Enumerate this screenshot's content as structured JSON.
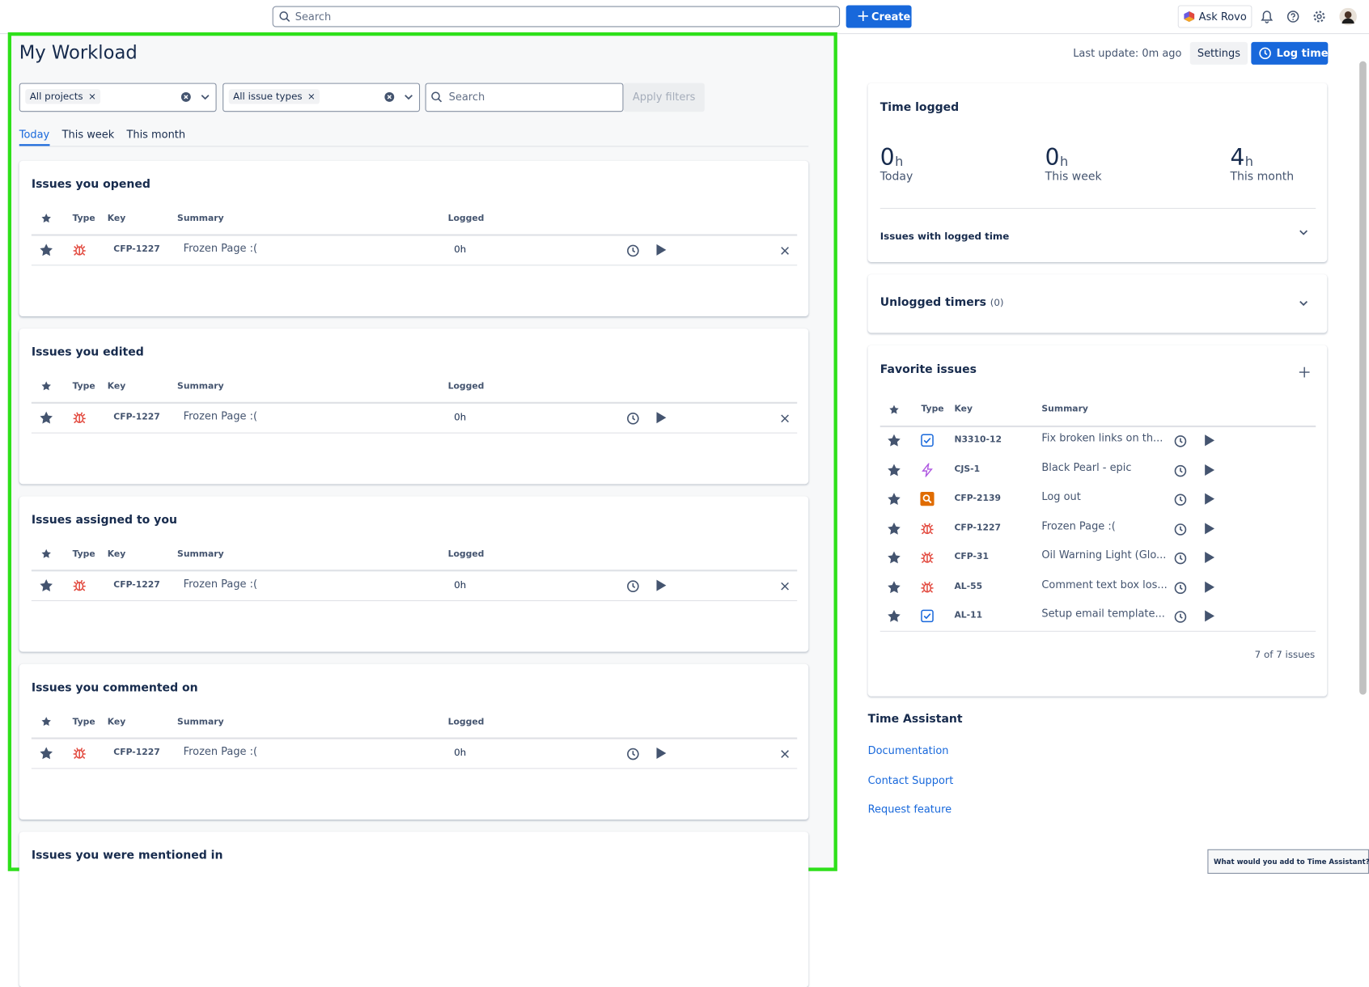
{
  "topbar": {
    "search_placeholder": "Search",
    "create": "Create",
    "ask_rovo": "Ask Rovo"
  },
  "workload": {
    "title": "My Workload",
    "filters": {
      "projects": "All projects",
      "issue_types": "All issue types",
      "search_placeholder": "Search",
      "apply": "Apply filters"
    },
    "tabs": [
      "Today",
      "This week",
      "This month"
    ],
    "columns": [
      "Type",
      "Key",
      "Summary",
      "Logged"
    ],
    "sections": [
      {
        "title": "Issues you opened",
        "rows": [
          {
            "key": "CFP-1227",
            "summary": "Frozen Page :(",
            "logged": "0h"
          }
        ]
      },
      {
        "title": "Issues you edited",
        "rows": [
          {
            "key": "CFP-1227",
            "summary": "Frozen Page :(",
            "logged": "0h"
          }
        ]
      },
      {
        "title": "Issues assigned to you",
        "rows": [
          {
            "key": "CFP-1227",
            "summary": "Frozen Page :(",
            "logged": "0h"
          }
        ]
      },
      {
        "title": "Issues you commented on",
        "rows": [
          {
            "key": "CFP-1227",
            "summary": "Frozen Page :(",
            "logged": "0h"
          }
        ]
      },
      {
        "title": "Issues you were mentioned in",
        "rows": []
      }
    ]
  },
  "sidebar": {
    "last_update": "Last update: 0m ago",
    "settings": "Settings",
    "log_time": "Log time",
    "time_logged": {
      "title": "Time logged",
      "stats": [
        {
          "value": 0,
          "unit": "h",
          "label": "Today"
        },
        {
          "value": 0,
          "unit": "h",
          "label": "This week"
        },
        {
          "value": 4,
          "unit": "h",
          "label": "This month"
        }
      ],
      "issues_with_logged_time": "Issues with logged time"
    },
    "unlogged_timers": {
      "title": "Unlogged timers",
      "count": "(0)"
    },
    "favorites": {
      "title": "Favorite issues",
      "columns": [
        "Type",
        "Key",
        "Summary"
      ],
      "rows": [
        {
          "key": "N3310-12",
          "summary": "Fix broken links on th..."
        },
        {
          "key": "CJS-1",
          "summary": "Black Pearl - epic"
        },
        {
          "key": "CFP-2139",
          "summary": "Log out"
        },
        {
          "key": "CFP-1227",
          "summary": "Frozen Page :("
        },
        {
          "key": "CFP-31",
          "summary": "Oil Warning Light (Glo..."
        },
        {
          "key": "AL-55",
          "summary": "Comment text box los..."
        },
        {
          "key": "AL-11",
          "summary": "Setup email template..."
        }
      ],
      "footer": "7 of 7 issues"
    },
    "time_assistant": {
      "title": "Time Assistant",
      "links": [
        "Documentation",
        "Contact Support",
        "Request feature"
      ]
    },
    "feedback": "What would you add to Time Assistant?"
  }
}
